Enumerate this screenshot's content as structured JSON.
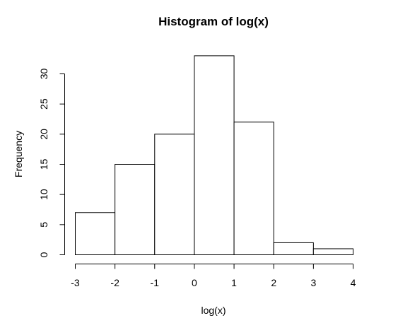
{
  "chart_data": {
    "type": "bar",
    "title": "Histogram of log(x)",
    "xlabel": "log(x)",
    "ylabel": "Frequency",
    "bins": [
      {
        "from": -3,
        "to": -2,
        "count": 7
      },
      {
        "from": -2,
        "to": -1,
        "count": 15
      },
      {
        "from": -1,
        "to": 0,
        "count": 20
      },
      {
        "from": 0,
        "to": 1,
        "count": 33
      },
      {
        "from": 1,
        "to": 2,
        "count": 22
      },
      {
        "from": 2,
        "to": 3,
        "count": 2
      },
      {
        "from": 3,
        "to": 4,
        "count": 1
      }
    ],
    "x_ticks": [
      "-3",
      "-2",
      "-1",
      "0",
      "1",
      "2",
      "3",
      "4"
    ],
    "y_ticks": [
      "0",
      "5",
      "10",
      "15",
      "20",
      "25",
      "30"
    ],
    "xlim": [
      -3,
      4
    ],
    "ylim": [
      0,
      33
    ],
    "grid": false
  }
}
